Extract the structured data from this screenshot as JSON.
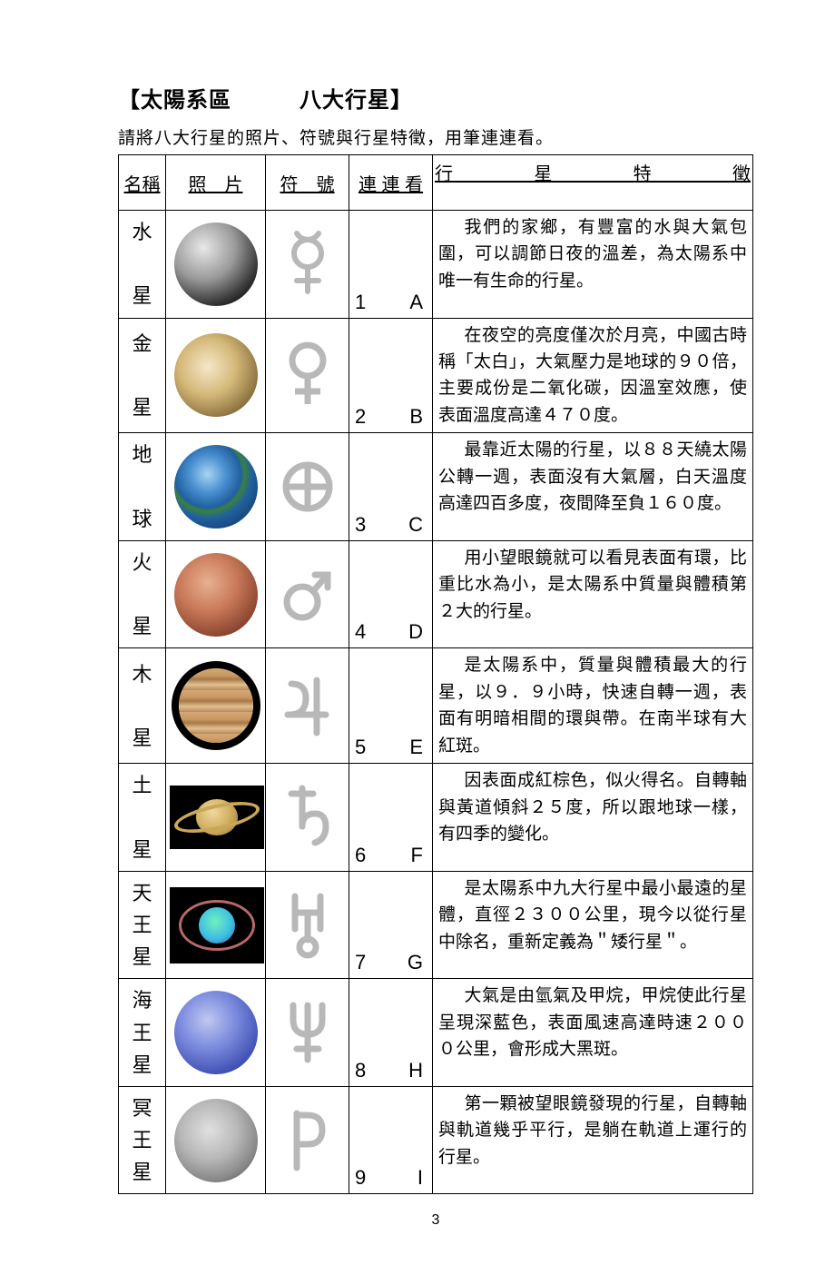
{
  "title": "【太陽系區　　　八大行星】",
  "subtitle": "請將八大行星的照片、符號與行星特徵，用筆連連看。",
  "headers": {
    "name": "名稱",
    "photo": "照　片",
    "symbol": "符　號",
    "match": "連 連 看",
    "desc": "行　星　特　徵"
  },
  "page_number": "3",
  "symbol_stroke": "#b8b8b8",
  "rows": [
    {
      "name": "水\n\n星",
      "photo": {
        "type": "mercury",
        "bg": "radial-gradient(circle at 35% 30%, #e8e8e8, #9a9a9a 40%, #3a3a3a 70%, #000 90%)",
        "shape": "circle"
      },
      "match_num": "1",
      "match_letter": "A",
      "desc": "我們的家鄉，有豐富的水與大氣包圍，可以調節日夜的溫差，為太陽系中唯一有生命的行星。"
    },
    {
      "name": "金\n\n星",
      "photo": {
        "type": "venus",
        "bg": "radial-gradient(circle at 40% 40%, #f5e8c8, #d4b878 40%, #8a6f3f 75%, #2a2410 95%)",
        "shape": "circle"
      },
      "match_num": "2",
      "match_letter": "B",
      "desc": "在夜空的亮度僅次於月亮，中國古時稱「太白」，大氣壓力是地球的９０倍，主要成份是二氧化碳，因溫室效應，使表面溫度高達４７０度。"
    },
    {
      "name": "地\n\n球",
      "photo": {
        "type": "earth",
        "bg": "radial-gradient(circle at 40% 35%, #a8d4f0 0%, #4a90d0 25%, #2060a0 45%, #3a8040 50%, #2060a0 60%, #103560 90%)",
        "shape": "circle"
      },
      "match_num": "3",
      "match_letter": "C",
      "desc": "最靠近太陽的行星，以８８天繞太陽公轉一週，表面沒有大氣層，白天溫度高達四百多度，夜間降至負１６０度。"
    },
    {
      "name": "火\n\n星",
      "photo": {
        "type": "mars",
        "bg": "radial-gradient(circle at 40% 35%, #e8b090, #c87858 40%, #8a4530 75%, #3a1f15 95%)",
        "shape": "circle"
      },
      "match_num": "4",
      "match_letter": "D",
      "desc": "用小望眼鏡就可以看見表面有環，比重比水為小，是太陽系中質量與體積第２大的行星。"
    },
    {
      "name": "木\n\n星",
      "photo": {
        "type": "jupiter",
        "bg": "repeating-linear-gradient(180deg, #d4a878 0px, #c89860 8px, #a87848 12px, #e0c090 18px, #b88858 24px)",
        "shape": "circle",
        "border": "#000"
      },
      "match_num": "5",
      "match_letter": "E",
      "desc": "是太陽系中，質量與體積最大的行星，以９．９小時，快速自轉一週，表面有明暗相間的環與帶。在南半球有大紅斑。"
    },
    {
      "name": "土\n\n星",
      "photo": {
        "type": "saturn",
        "bg": "#000",
        "shape": "saturn"
      },
      "match_num": "6",
      "match_letter": "F",
      "desc": "因表面成紅棕色，似火得名。自轉軸與黃道傾斜２５度，所以跟地球一樣，有四季的變化。"
    },
    {
      "name": "天\n王\n星",
      "photo": {
        "type": "uranus",
        "bg": "#000",
        "shape": "uranus"
      },
      "match_num": "7",
      "match_letter": "G",
      "desc": "是太陽系中九大行星中最小最遠的星體，直徑２３００公里，現今以從行星中除名，重新定義為＂矮行星＂。"
    },
    {
      "name": "海\n王\n星",
      "photo": {
        "type": "neptune",
        "bg": "radial-gradient(circle at 40% 35%, #c0c8f0, #8090e0 35%, #5060c0 65%, #2838a0 90%)",
        "shape": "circle"
      },
      "match_num": "8",
      "match_letter": "H",
      "desc": "大氣是由氫氣及甲烷，甲烷使此行星呈現深藍色，表面風速高達時速２０００公里，會形成大黑斑。"
    },
    {
      "name": "冥\n王\n星",
      "photo": {
        "type": "pluto",
        "bg": "radial-gradient(circle at 42% 38%, #e0e0e0, #b8b8b8 40%, #888 70%, #555 92%)",
        "shape": "circle"
      },
      "match_num": "9",
      "match_letter": "I",
      "desc": "第一顆被望眼鏡發現的行星，自轉軸與軌道幾乎平行，是躺在軌道上運行的行星。"
    }
  ]
}
